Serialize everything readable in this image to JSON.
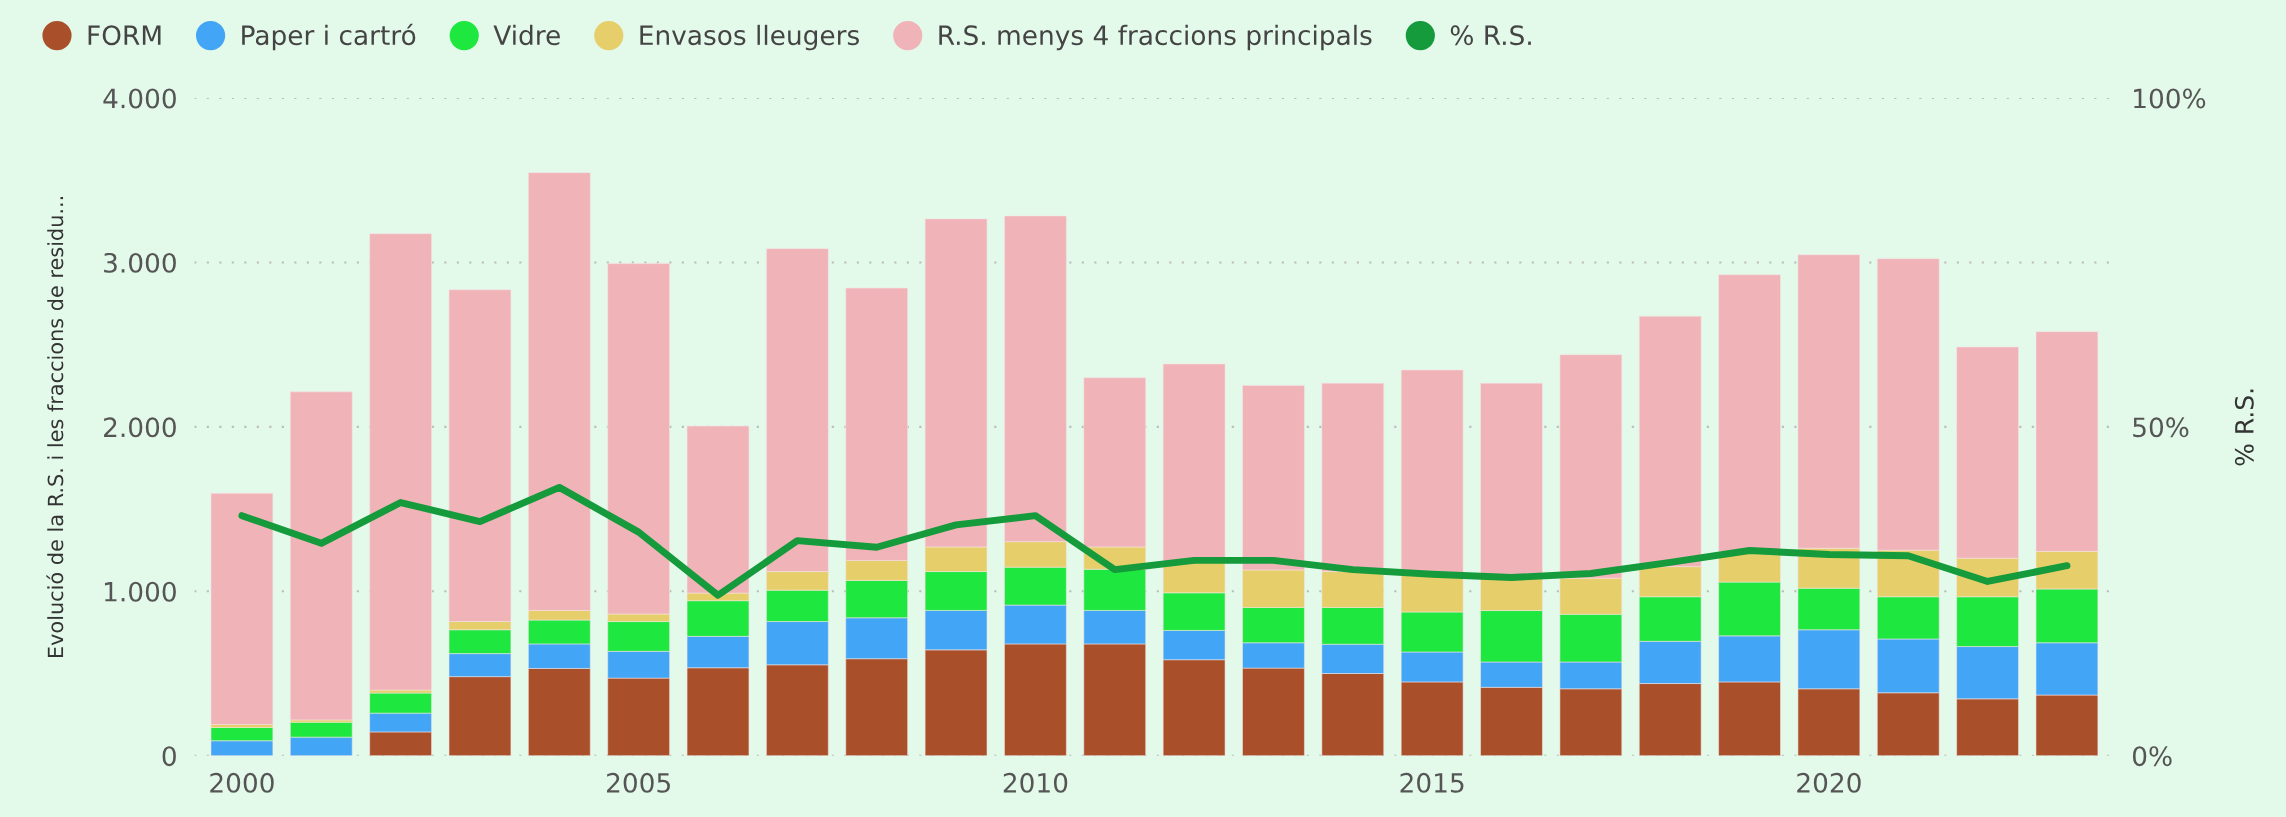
{
  "chart_data": {
    "type": "bar",
    "stacked": true,
    "ylabel": "Evolució de la R.S. i les fraccions de residu...",
    "y2label": "% R.S.",
    "x": [
      2000,
      2001,
      2002,
      2003,
      2004,
      2005,
      2006,
      2007,
      2008,
      2009,
      2010,
      2011,
      2012,
      2013,
      2014,
      2015,
      2016,
      2017,
      2018,
      2019,
      2020,
      2021,
      2022,
      2023
    ],
    "xlim": [
      1999.4,
      2023.6
    ],
    "xticks": [
      2000,
      2005,
      2010,
      2015,
      2020
    ],
    "ylim": [
      0,
      4000
    ],
    "yticks": [
      {
        "value": 0,
        "label": "0"
      },
      {
        "value": 1000,
        "label": "1.000"
      },
      {
        "value": 2000,
        "label": "2.000"
      },
      {
        "value": 3000,
        "label": "3.000"
      },
      {
        "value": 4000,
        "label": "4.000"
      }
    ],
    "y2lim": [
      0,
      100
    ],
    "y2ticks": [
      {
        "value": 0,
        "label": "0%"
      },
      {
        "value": 50,
        "label": "50%"
      },
      {
        "value": 100,
        "label": "100%"
      }
    ],
    "grid": "y",
    "legend": "top left",
    "line_style": "solid",
    "marker": "none",
    "series": [
      {
        "name": "FORM",
        "color": "#a9502a",
        "values": [
          0,
          0,
          145,
          481,
          531,
          472,
          535,
          553,
          590,
          644,
          680,
          680,
          584,
          533,
          500,
          449,
          416,
          407,
          439,
          449,
          407,
          383,
          346,
          369
        ]
      },
      {
        "name": "Paper i cartró",
        "color": "#42a5f5",
        "values": [
          91,
          113,
          114,
          140,
          149,
          163,
          191,
          263,
          249,
          240,
          236,
          204,
          178,
          154,
          178,
          182,
          154,
          163,
          257,
          280,
          359,
          327,
          318,
          318
        ]
      },
      {
        "name": "Vidre",
        "color": "#1ee83f",
        "values": [
          81,
          91,
          122,
          145,
          145,
          181,
          217,
          191,
          227,
          236,
          231,
          250,
          229,
          215,
          224,
          243,
          313,
          290,
          271,
          327,
          253,
          257,
          303,
          327
        ]
      },
      {
        "name": "Envasos lleugers",
        "color": "#e6cf6a",
        "values": [
          18,
          14,
          18,
          50,
          59,
          46,
          46,
          113,
          122,
          150,
          155,
          136,
          187,
          228,
          218,
          226,
          197,
          220,
          183,
          184,
          243,
          283,
          234,
          229
        ]
      },
      {
        "name": "R.S. menys 4 fraccions principals",
        "color": "#f0b3b8",
        "values": [
          1406,
          1995,
          2776,
          2018,
          2662,
          2131,
          1016,
          1964,
          1656,
          1995,
          1981,
          1029,
          1205,
          1122,
          1146,
          1246,
          1186,
          1359,
          1523,
          1685,
          1785,
          1773,
          1285,
          1336
        ]
      },
      {
        "name": "% R.S.",
        "color": "#159a3c",
        "type": "line",
        "axis": "y2",
        "values": [
          36.5,
          32.3,
          38.5,
          35.6,
          40.8,
          34.0,
          24.4,
          32.7,
          31.7,
          35.1,
          36.5,
          28.3,
          29.7,
          29.7,
          28.3,
          27.6,
          27.1,
          27.7,
          29.4,
          31.2,
          30.6,
          30.4,
          26.5,
          28.9
        ]
      }
    ]
  }
}
